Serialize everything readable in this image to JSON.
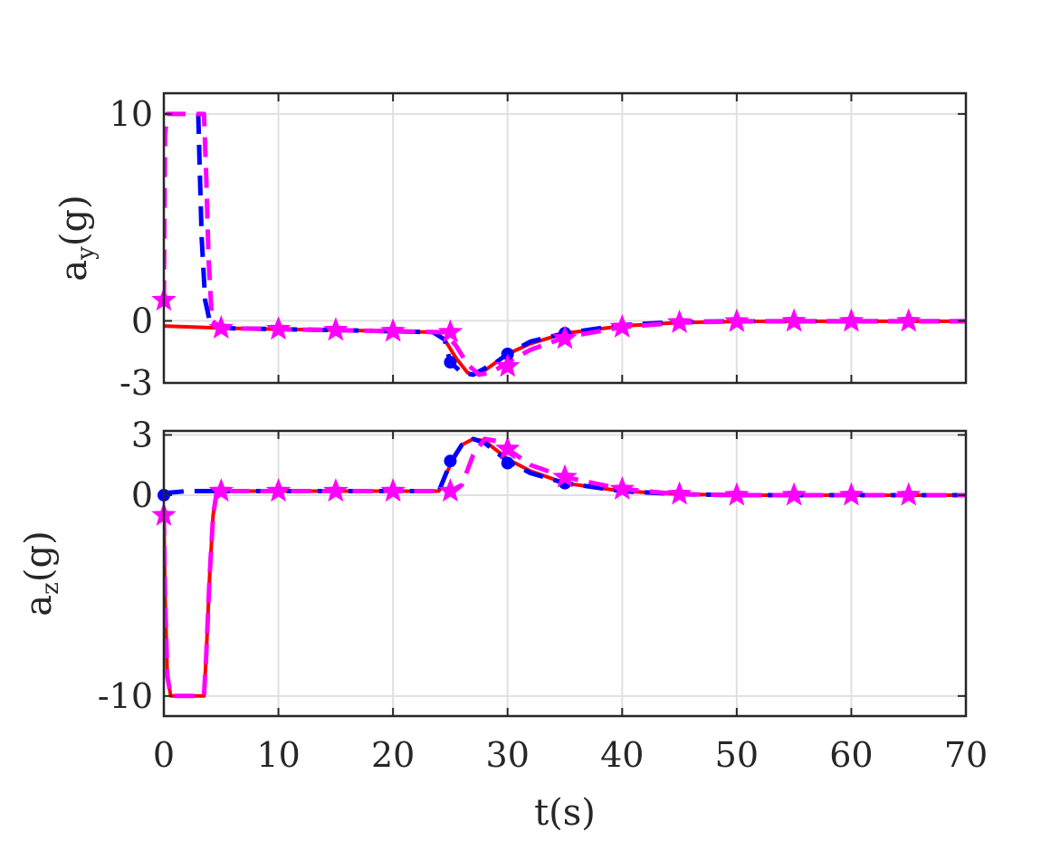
{
  "chart_data": [
    {
      "type": "line",
      "ylabel_main": "a",
      "ylabel_sub": "y",
      "ylabel_unit": "(g)",
      "xlim": [
        0,
        70
      ],
      "ylim": [
        -3,
        11
      ],
      "yticks": [
        {
          "value": -3,
          "label": "-3"
        },
        {
          "value": 0,
          "label": "0"
        },
        {
          "value": 10,
          "label": "10"
        }
      ],
      "xticks": [
        0,
        10,
        20,
        30,
        40,
        50,
        60,
        70
      ],
      "grid": true,
      "series": [
        {
          "color": "#ff0000",
          "style": "solid",
          "marker": "none",
          "x": [
            0,
            5,
            10,
            15,
            20,
            23.5,
            24.5,
            25.5,
            26.5,
            27,
            28,
            29,
            30,
            32,
            35,
            40,
            45,
            50,
            55,
            60,
            65,
            70
          ],
          "y": [
            -0.25,
            -0.35,
            -0.4,
            -0.45,
            -0.5,
            -0.55,
            -0.9,
            -1.8,
            -2.5,
            -2.6,
            -2.4,
            -2.0,
            -1.6,
            -1.1,
            -0.6,
            -0.25,
            -0.08,
            -0.03,
            -0.02,
            -0.02,
            -0.02,
            -0.02
          ]
        },
        {
          "color": "#0000ff",
          "style": "dashed",
          "marker": "circle",
          "x": [
            3.0,
            3.1,
            3.3,
            3.6,
            4.0,
            5,
            10,
            15,
            20,
            23.5,
            24.5,
            25,
            26,
            27,
            28,
            29,
            30,
            32,
            35,
            40,
            45,
            50,
            55,
            60,
            65,
            70
          ],
          "y": [
            10,
            8,
            4,
            1,
            0,
            -0.35,
            -0.4,
            -0.45,
            -0.5,
            -0.55,
            -0.9,
            -2.0,
            -2.5,
            -2.6,
            -2.3,
            -2.0,
            -1.6,
            -1.0,
            -0.6,
            -0.2,
            -0.05,
            -0.02,
            -0.02,
            -0.02,
            -0.02,
            -0.02
          ],
          "markers": [
            [
              25,
              -2.0
            ],
            [
              30,
              -1.6
            ],
            [
              35,
              -0.6
            ]
          ]
        },
        {
          "color": "#ff00ff",
          "style": "dashed",
          "marker": "star",
          "x": [
            0,
            0.1,
            0.3,
            3.5,
            3.7,
            3.9,
            4.2,
            5,
            10,
            15,
            20,
            24.5,
            25.5,
            26.5,
            27.5,
            28.5,
            29.5,
            30,
            32,
            35,
            40,
            45,
            50,
            55,
            60,
            65,
            70
          ],
          "y": [
            1,
            9,
            10,
            10,
            7,
            3,
            0,
            -0.35,
            -0.4,
            -0.45,
            -0.5,
            -0.55,
            -1.2,
            -2.1,
            -2.6,
            -2.5,
            -2.2,
            -2.0,
            -1.4,
            -0.8,
            -0.3,
            -0.08,
            -0.03,
            -0.02,
            -0.02,
            -0.02,
            -0.02
          ],
          "markers": [
            [
              0,
              1
            ],
            [
              5,
              -0.35
            ],
            [
              10,
              -0.4
            ],
            [
              15,
              -0.45
            ],
            [
              20,
              -0.5
            ],
            [
              25,
              -0.55
            ],
            [
              30,
              -2.2
            ],
            [
              35,
              -0.85
            ],
            [
              40,
              -0.3
            ],
            [
              45,
              -0.08
            ],
            [
              50,
              -0.03
            ],
            [
              55,
              -0.02
            ],
            [
              60,
              -0.02
            ],
            [
              65,
              -0.02
            ]
          ]
        }
      ]
    },
    {
      "type": "line",
      "ylabel_main": "a",
      "ylabel_sub": "z",
      "ylabel_unit": "(g)",
      "xlabel": "t(s)",
      "xlim": [
        0,
        70
      ],
      "ylim": [
        -11,
        3.2
      ],
      "yticks": [
        {
          "value": -10,
          "label": "-10"
        },
        {
          "value": 0,
          "label": "0"
        },
        {
          "value": 3,
          "label": "3"
        }
      ],
      "xticks": [
        0,
        10,
        20,
        30,
        40,
        50,
        60,
        70
      ],
      "xticklabels": [
        "0",
        "10",
        "20",
        "30",
        "40",
        "50",
        "60",
        "70"
      ],
      "grid": true,
      "series": [
        {
          "color": "#ff0000",
          "style": "solid",
          "marker": "none",
          "x": [
            0,
            0.1,
            0.3,
            0.6,
            1,
            3.5,
            3.7,
            4.0,
            4.3,
            4.6,
            5,
            10,
            15,
            20,
            24,
            25,
            26,
            27,
            28,
            30,
            32,
            35,
            40,
            45,
            50,
            55,
            60,
            65,
            70
          ],
          "y": [
            -1,
            -5,
            -9,
            -10,
            -10,
            -10,
            -8,
            -4,
            -1,
            0.1,
            0.2,
            0.2,
            0.2,
            0.2,
            0.2,
            1.5,
            2.5,
            2.8,
            2.7,
            1.8,
            1.2,
            0.6,
            0.2,
            0.05,
            0.0,
            0.0,
            0.0,
            0.0,
            0.0
          ]
        },
        {
          "color": "#0000ff",
          "style": "dashed",
          "marker": "circle",
          "x": [
            0,
            2,
            5,
            10,
            15,
            20,
            24,
            25,
            26,
            27,
            28,
            30,
            32,
            35,
            40,
            45,
            50,
            55,
            60,
            65,
            70
          ],
          "y": [
            0.1,
            0.2,
            0.2,
            0.2,
            0.2,
            0.2,
            0.2,
            1.6,
            2.5,
            2.8,
            2.6,
            1.7,
            1.1,
            0.6,
            0.2,
            0.05,
            0.0,
            0.0,
            0.0,
            0.0,
            0.0
          ],
          "markers": [
            [
              0,
              0.0
            ],
            [
              25,
              1.7
            ],
            [
              30,
              1.6
            ],
            [
              35,
              0.6
            ]
          ]
        },
        {
          "color": "#ff00ff",
          "style": "dashed",
          "marker": "star",
          "x": [
            0,
            0.1,
            0.3,
            0.6,
            1,
            3.5,
            3.7,
            4.0,
            4.3,
            4.6,
            5,
            10,
            15,
            20,
            25,
            26,
            27,
            28,
            29,
            30,
            32,
            35,
            40,
            45,
            50,
            55,
            60,
            65,
            70
          ],
          "y": [
            -1,
            -5,
            -9,
            -10,
            -10,
            -10,
            -8,
            -4,
            -1,
            0.1,
            0.2,
            0.2,
            0.2,
            0.2,
            0.2,
            0.5,
            2.0,
            2.8,
            2.7,
            2.3,
            1.5,
            0.9,
            0.3,
            0.05,
            0.0,
            0.0,
            0.0,
            0.0,
            0.0
          ],
          "markers": [
            [
              0,
              -1.0
            ],
            [
              5,
              0.2
            ],
            [
              10,
              0.2
            ],
            [
              15,
              0.2
            ],
            [
              20,
              0.2
            ],
            [
              25,
              0.2
            ],
            [
              30,
              2.3
            ],
            [
              35,
              0.9
            ],
            [
              40,
              0.3
            ],
            [
              45,
              0.05
            ],
            [
              50,
              0.0
            ],
            [
              55,
              0.0
            ],
            [
              60,
              0.0
            ],
            [
              65,
              0.0
            ]
          ]
        }
      ]
    }
  ]
}
